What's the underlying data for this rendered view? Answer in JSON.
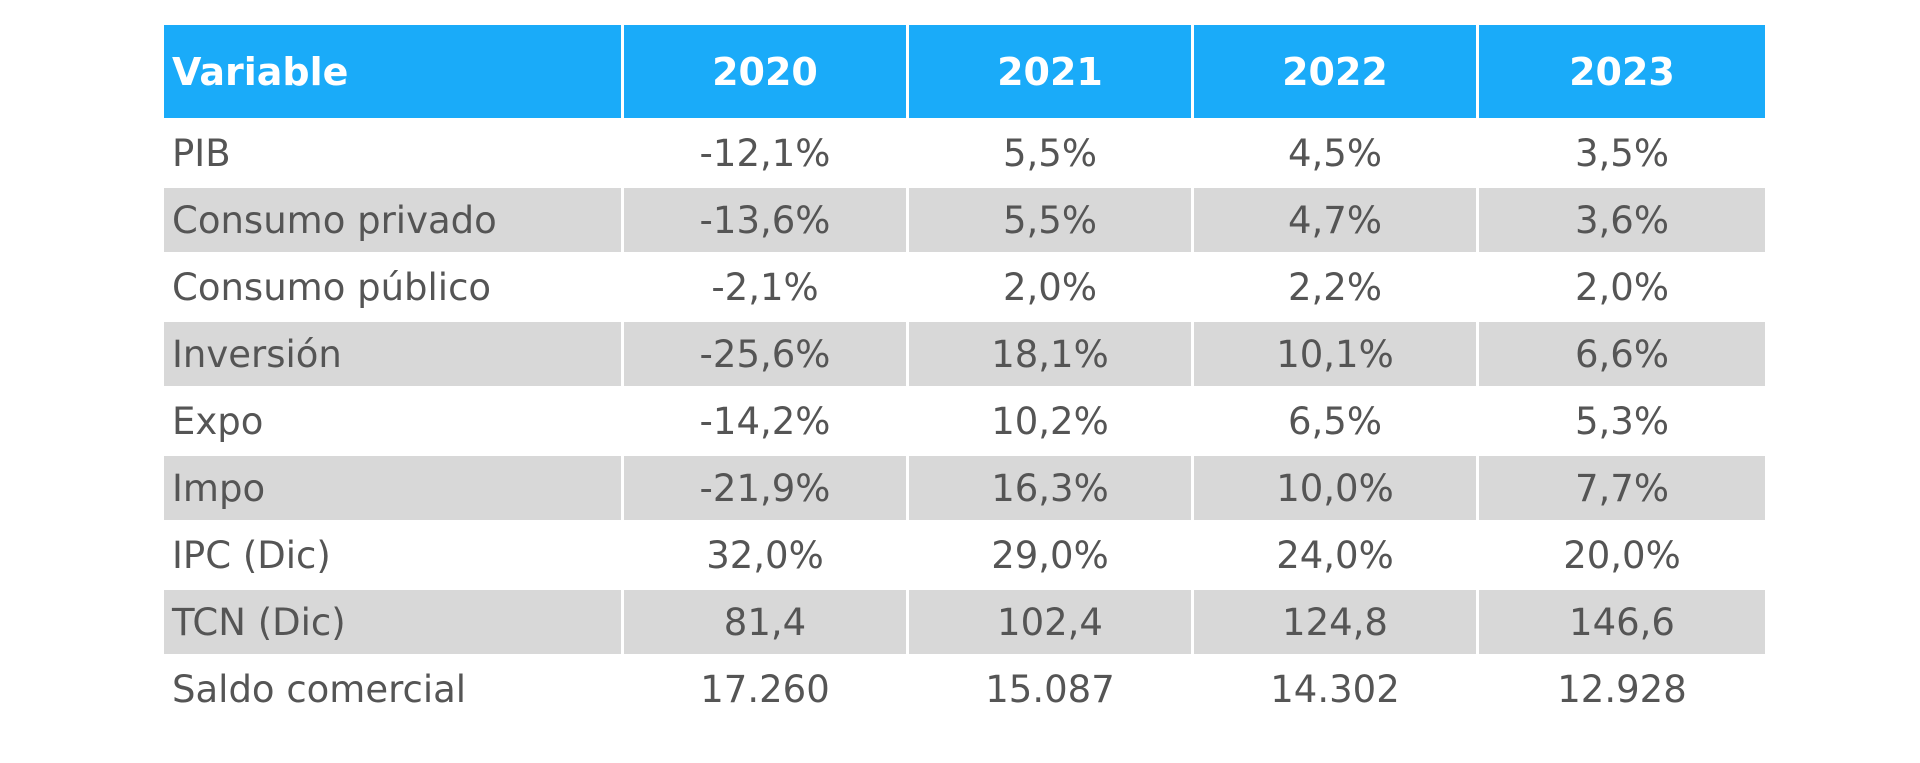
{
  "chart_data": {
    "type": "table",
    "columns": [
      "Variable",
      "2020",
      "2021",
      "2022",
      "2023"
    ],
    "rows": [
      [
        "PIB",
        "-12,1%",
        "5,5%",
        "4,5%",
        "3,5%"
      ],
      [
        "Consumo privado",
        "-13,6%",
        "5,5%",
        "4,7%",
        "3,6%"
      ],
      [
        "Consumo público",
        "-2,1%",
        "2,0%",
        "2,2%",
        "2,0%"
      ],
      [
        "Inversión",
        "-25,6%",
        "18,1%",
        "10,1%",
        "6,6%"
      ],
      [
        "Expo",
        "-14,2%",
        "10,2%",
        "6,5%",
        "5,3%"
      ],
      [
        "Impo",
        "-21,9%",
        "16,3%",
        "10,0%",
        "7,7%"
      ],
      [
        "IPC (Dic)",
        "32,0%",
        "29,0%",
        "24,0%",
        "20,0%"
      ],
      [
        "TCN (Dic)",
        "81,4",
        "102,4",
        "124,8",
        "146,6"
      ],
      [
        "Saldo comercial",
        "17.260",
        "15.087",
        "14.302",
        "12.928"
      ]
    ]
  },
  "colors": {
    "header_bg": "#1aabf9",
    "header_text": "#ffffff",
    "row_shade": "#d8d8d8",
    "body_text": "#555555"
  }
}
